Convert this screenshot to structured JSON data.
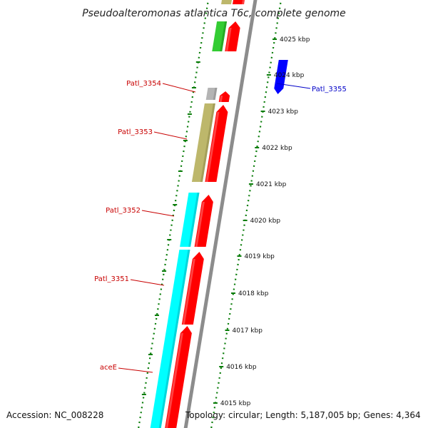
{
  "title": "Pseudoalteromonas atlantica T6c, complete genome",
  "footer": {
    "accession": "Accession: NC_008228",
    "topology": "Topology: circular; Length: 5,187,005 bp; Genes: 4,364"
  },
  "colors": {
    "cds_red": "#ff0000",
    "cds_red_light": "#ff7070",
    "cyan": "#00ffff",
    "olive": "#bdb76b",
    "gray": "#b4b4b4",
    "green": "#33cc33",
    "blue": "#0000ff",
    "backbone": "#8c8c8c",
    "tick_green": "#0a7d0a",
    "label_red": "#c80000",
    "label_blue": "#0000c8"
  },
  "ticks": [
    {
      "label": "4025 kbp"
    },
    {
      "label": "4024 kbp"
    },
    {
      "label": "4023 kbp"
    },
    {
      "label": "4022 kbp"
    },
    {
      "label": "4021 kbp"
    },
    {
      "label": "4020 kbp"
    },
    {
      "label": "4019 kbp"
    },
    {
      "label": "4018 kbp"
    },
    {
      "label": "4017 kbp"
    },
    {
      "label": "4016 kbp"
    },
    {
      "label": "4015 kbp"
    }
  ],
  "gene_labels": [
    "Patl_3354",
    "Patl_3353",
    "Patl_3352",
    "Patl_3351",
    "aceE",
    "Patl_3355"
  ]
}
